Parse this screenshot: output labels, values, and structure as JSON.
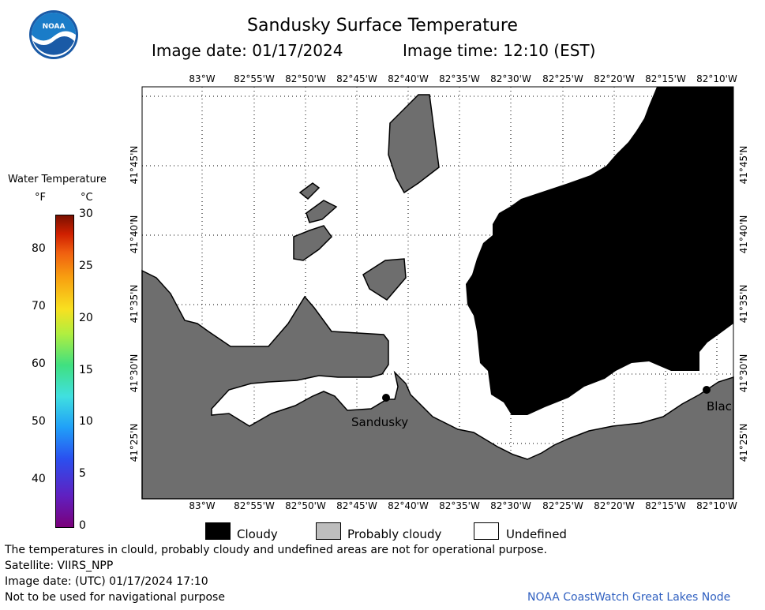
{
  "header": {
    "title": "Sandusky Surface Temperature",
    "image_date": "Image date: 01/17/2024",
    "image_time": "Image time: 12:10 (EST)"
  },
  "logo_text": "NOAA",
  "colorbar": {
    "title": "Water Temperature",
    "unit_f": "°F",
    "unit_c": "°C",
    "f_ticks": [
      "80",
      "70",
      "60",
      "50",
      "40"
    ],
    "c_ticks": [
      "30",
      "25",
      "20",
      "15",
      "10",
      "5",
      "0"
    ]
  },
  "map": {
    "lon_labels": [
      "83°W",
      "82°55'W",
      "82°50'W",
      "82°45'W",
      "82°40'W",
      "82°35'W",
      "82°30'W",
      "82°25'W",
      "82°20'W",
      "82°15'W",
      "82°10'W"
    ],
    "lat_labels": [
      "41°45'N",
      "41°40'N",
      "41°35'N",
      "41°30'N",
      "41°25'N"
    ],
    "places": {
      "sandusky": "Sandusky",
      "blac": "Blac"
    },
    "colors": {
      "cloudy": "#000000",
      "probably_cloudy": "#6e6e6e",
      "undefined": "#ffffff"
    }
  },
  "legend": {
    "cloudy": "Cloudy",
    "probably_cloudy": "Probably cloudy",
    "undefined": "Undefined"
  },
  "footer": {
    "disclaimer": "The temperatures in clould, probably cloudy and undefined areas are not for operational purpose.",
    "satellite": "Satellite: VIIRS_NPP",
    "utc_date": "Image date: (UTC) 01/17/2024  17:10",
    "nav_warning": "Not to be used for navigational purpose",
    "credit": "NOAA CoastWatch Great Lakes Node"
  }
}
